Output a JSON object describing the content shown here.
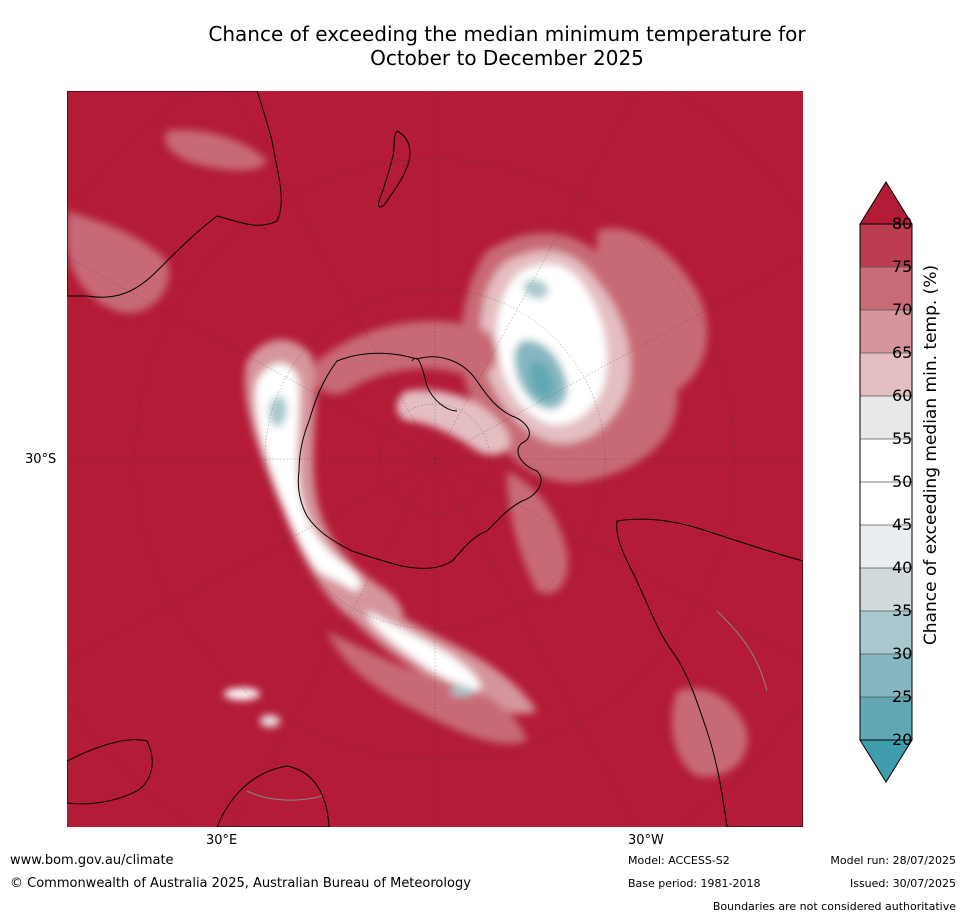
{
  "title": {
    "line1": "Chance of exceeding the median minimum temperature for",
    "line2": "October to December 2025"
  },
  "map": {
    "projection": "polar stereographic (south pole)",
    "lat_label": "30°S",
    "lon_labels": [
      "30°E",
      "30°W"
    ],
    "background_color": "#b31b37",
    "land_outline_color": "#000000",
    "boundary_color": "#888888"
  },
  "colorbar": {
    "title": "Chance of exceeding median min. temp. (%)",
    "ticks": [
      "80",
      "75",
      "70",
      "65",
      "60",
      "55",
      "50",
      "45",
      "40",
      "35",
      "30",
      "25",
      "20"
    ],
    "colors_top_to_bottom": [
      "#b31b37",
      "#bd3d50",
      "#c86b76",
      "#d5959c",
      "#e4bec1",
      "#e8e8e8",
      "#ffffff",
      "#ffffff",
      "#e9eef1",
      "#d1d9dc",
      "#a9c8cd",
      "#86b7c1",
      "#62a8b4",
      "#3f9dad"
    ],
    "extends": "both"
  },
  "footer": {
    "website": "www.bom.gov.au/climate",
    "copyright": "© Commonwealth of Australia 2025, Australian Bureau of Meteorology",
    "model": "Model: ACCESS-S2",
    "base_period": "Base period: 1981-2018",
    "model_run": "Model run: 28/07/2025",
    "issued": "Issued: 30/07/2025",
    "disclaimer": "Boundaries are not considered authoritative"
  }
}
